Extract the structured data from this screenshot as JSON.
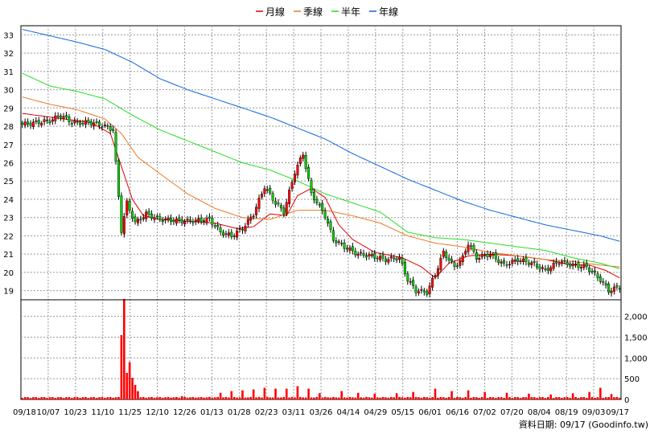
{
  "chart_data": [
    {
      "type": "candlestick",
      "panel": "price",
      "legend_position": "top-center",
      "grid": true,
      "ylim": [
        18.5,
        33.5
      ],
      "y_ticks": [
        19,
        20,
        21,
        22,
        23,
        24,
        25,
        26,
        27,
        28,
        29,
        30,
        31,
        32,
        33
      ],
      "x_ticks": [
        "09/18",
        "10/07",
        "10/23",
        "11/10",
        "11/25",
        "12/10",
        "12/26",
        "01/13",
        "01/28",
        "02/23",
        "03/11",
        "03/26",
        "04/14",
        "04/29",
        "05/15",
        "06/01",
        "06/16",
        "07/02",
        "07/20",
        "08/04",
        "08/19",
        "09/03",
        "09/17"
      ],
      "colors": {
        "up": "#ff0000",
        "down": "#00cc00",
        "monthly": "#dd0000",
        "quarterly": "#ee7722",
        "half_year": "#22dd22",
        "yearly": "#1166dd"
      },
      "legend": [
        {
          "key": "monthly",
          "label": "月線"
        },
        {
          "key": "quarterly",
          "label": "季線"
        },
        {
          "key": "half_year",
          "label": "半年"
        },
        {
          "key": "yearly",
          "label": "年線"
        }
      ],
      "close_anchors": [
        [
          0,
          28.1
        ],
        [
          5,
          28.2
        ],
        [
          10,
          28.3
        ],
        [
          14,
          28.6
        ],
        [
          18,
          28.2
        ],
        [
          25,
          28.2
        ],
        [
          30,
          28.0
        ],
        [
          33,
          27.8
        ],
        [
          36,
          22.3
        ],
        [
          38,
          23.8
        ],
        [
          41,
          22.7
        ],
        [
          45,
          23.2
        ],
        [
          50,
          22.9
        ],
        [
          60,
          22.8
        ],
        [
          68,
          22.9
        ],
        [
          72,
          22.2
        ],
        [
          76,
          22.0
        ],
        [
          80,
          22.4
        ],
        [
          84,
          23.2
        ],
        [
          88,
          24.7
        ],
        [
          92,
          23.8
        ],
        [
          95,
          23.3
        ],
        [
          99,
          25.5
        ],
        [
          102,
          26.5
        ],
        [
          105,
          24.3
        ],
        [
          108,
          23.6
        ],
        [
          110,
          23.1
        ],
        [
          113,
          21.8
        ],
        [
          117,
          21.4
        ],
        [
          122,
          21.0
        ],
        [
          127,
          20.9
        ],
        [
          132,
          20.7
        ],
        [
          137,
          20.8
        ],
        [
          140,
          19.6
        ],
        [
          143,
          19.0
        ],
        [
          147,
          18.9
        ],
        [
          150,
          19.9
        ],
        [
          153,
          21.1
        ],
        [
          157,
          20.3
        ],
        [
          160,
          20.8
        ],
        [
          162,
          21.6
        ],
        [
          165,
          20.8
        ],
        [
          170,
          21.0
        ],
        [
          175,
          20.4
        ],
        [
          180,
          20.7
        ],
        [
          185,
          20.5
        ],
        [
          190,
          20.1
        ],
        [
          195,
          20.6
        ],
        [
          200,
          20.4
        ],
        [
          205,
          20.3
        ],
        [
          210,
          19.6
        ],
        [
          213,
          19.0
        ],
        [
          217,
          19.2
        ]
      ],
      "moving_averages": {
        "monthly": [
          [
            0,
            28.7
          ],
          [
            5,
            28.6
          ],
          [
            15,
            28.4
          ],
          [
            25,
            28.2
          ],
          [
            32,
            27.6
          ],
          [
            36,
            25.8
          ],
          [
            40,
            24.0
          ],
          [
            44,
            23.1
          ],
          [
            50,
            22.9
          ],
          [
            60,
            22.8
          ],
          [
            70,
            22.7
          ],
          [
            78,
            22.4
          ],
          [
            84,
            22.5
          ],
          [
            90,
            23.2
          ],
          [
            96,
            23.1
          ],
          [
            100,
            24.2
          ],
          [
            105,
            24.6
          ],
          [
            110,
            24.1
          ],
          [
            115,
            22.6
          ],
          [
            120,
            21.8
          ],
          [
            128,
            21.1
          ],
          [
            138,
            20.8
          ],
          [
            145,
            20.3
          ],
          [
            150,
            19.7
          ],
          [
            155,
            20.5
          ],
          [
            162,
            20.9
          ],
          [
            170,
            21.0
          ],
          [
            180,
            20.9
          ],
          [
            190,
            20.7
          ],
          [
            200,
            20.4
          ],
          [
            206,
            20.4
          ],
          [
            212,
            20.1
          ],
          [
            217,
            19.7
          ]
        ],
        "quarterly": [
          [
            0,
            29.6
          ],
          [
            10,
            29.2
          ],
          [
            20,
            28.9
          ],
          [
            30,
            28.4
          ],
          [
            36,
            27.6
          ],
          [
            42,
            26.3
          ],
          [
            50,
            25.4
          ],
          [
            60,
            24.3
          ],
          [
            70,
            23.5
          ],
          [
            80,
            23.0
          ],
          [
            90,
            22.9
          ],
          [
            100,
            23.4
          ],
          [
            110,
            23.4
          ],
          [
            120,
            23.1
          ],
          [
            130,
            22.7
          ],
          [
            140,
            22.0
          ],
          [
            150,
            21.6
          ],
          [
            160,
            21.4
          ],
          [
            170,
            21.1
          ],
          [
            180,
            20.9
          ],
          [
            190,
            20.7
          ],
          [
            200,
            20.6
          ],
          [
            210,
            20.4
          ],
          [
            217,
            20.3
          ]
        ],
        "half_year": [
          [
            0,
            30.9
          ],
          [
            10,
            30.2
          ],
          [
            20,
            29.9
          ],
          [
            30,
            29.5
          ],
          [
            40,
            28.6
          ],
          [
            50,
            27.8
          ],
          [
            60,
            27.2
          ],
          [
            70,
            26.6
          ],
          [
            80,
            26.0
          ],
          [
            90,
            25.6
          ],
          [
            100,
            25.0
          ],
          [
            110,
            24.3
          ],
          [
            120,
            23.8
          ],
          [
            130,
            23.3
          ],
          [
            140,
            22.2
          ],
          [
            150,
            21.9
          ],
          [
            160,
            21.8
          ],
          [
            170,
            21.6
          ],
          [
            180,
            21.4
          ],
          [
            190,
            21.2
          ],
          [
            200,
            20.8
          ],
          [
            210,
            20.5
          ],
          [
            217,
            20.2
          ]
        ],
        "yearly": [
          [
            0,
            33.3
          ],
          [
            20,
            32.6
          ],
          [
            30,
            32.2
          ],
          [
            40,
            31.5
          ],
          [
            50,
            30.6
          ],
          [
            60,
            30.0
          ],
          [
            70,
            29.5
          ],
          [
            80,
            29.0
          ],
          [
            90,
            28.5
          ],
          [
            100,
            27.9
          ],
          [
            110,
            27.3
          ],
          [
            120,
            26.5
          ],
          [
            130,
            25.8
          ],
          [
            140,
            25.1
          ],
          [
            150,
            24.5
          ],
          [
            160,
            23.9
          ],
          [
            170,
            23.4
          ],
          [
            180,
            23.0
          ],
          [
            190,
            22.6
          ],
          [
            200,
            22.3
          ],
          [
            210,
            22.0
          ],
          [
            217,
            21.7
          ]
        ]
      }
    },
    {
      "type": "bar",
      "panel": "volume",
      "grid": true,
      "ylim": [
        0,
        2400
      ],
      "y_ticks": [
        0,
        500,
        1000,
        1500,
        2000
      ],
      "y_tick_labels": [
        "0",
        "500",
        "1,000",
        "1,500",
        "2,000"
      ],
      "color": "#ff0000",
      "base_volume": 60,
      "volume_peaks": [
        [
          36,
          1550
        ],
        [
          37,
          2420
        ],
        [
          38,
          640
        ],
        [
          39,
          900
        ],
        [
          40,
          520
        ],
        [
          41,
          350
        ],
        [
          42,
          200
        ],
        [
          58,
          80
        ],
        [
          72,
          160
        ],
        [
          76,
          200
        ],
        [
          80,
          220
        ],
        [
          84,
          240
        ],
        [
          88,
          280
        ],
        [
          92,
          260
        ],
        [
          96,
          260
        ],
        [
          100,
          320
        ],
        [
          104,
          260
        ],
        [
          108,
          150
        ],
        [
          116,
          200
        ],
        [
          122,
          160
        ],
        [
          128,
          140
        ],
        [
          136,
          150
        ],
        [
          142,
          180
        ],
        [
          150,
          260
        ],
        [
          156,
          200
        ],
        [
          162,
          220
        ],
        [
          168,
          180
        ],
        [
          176,
          160
        ],
        [
          184,
          140
        ],
        [
          192,
          120
        ],
        [
          200,
          150
        ],
        [
          206,
          180
        ],
        [
          210,
          280
        ],
        [
          214,
          130
        ]
      ]
    }
  ],
  "source_text": "資料日期: 09/17 (Goodinfo.tw)"
}
